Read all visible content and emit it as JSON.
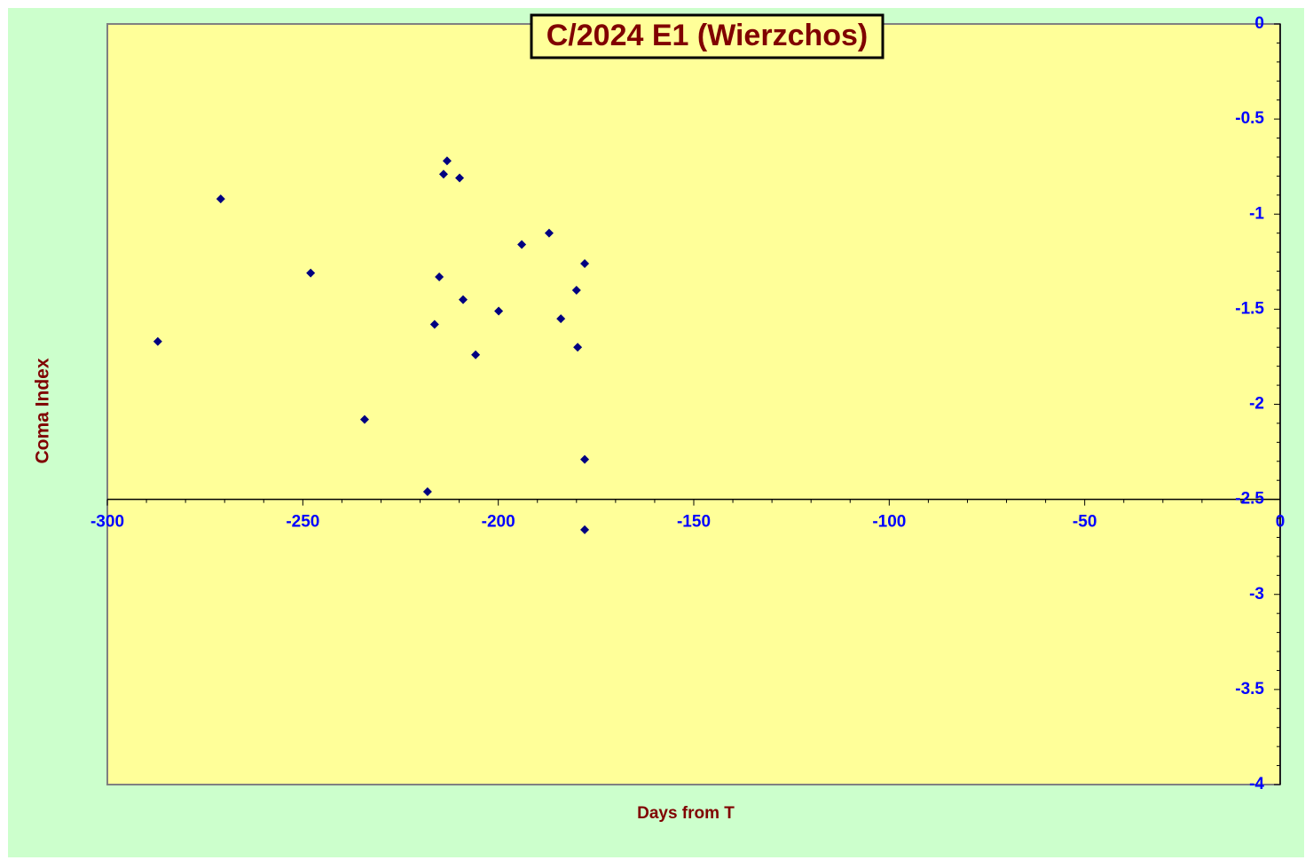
{
  "chart_data": {
    "type": "scatter",
    "title": "C/2024 E1 (Wierzchos)",
    "x_label": "Days from T",
    "y_label": "Coma Index",
    "xlim": [
      -300,
      0
    ],
    "xticks": [
      -300,
      -250,
      -200,
      -150,
      -100,
      -50,
      0
    ],
    "ylim": [
      -4,
      0
    ],
    "yticks": [
      0,
      -0.5,
      -1,
      -1.5,
      -2,
      -2.5,
      -3,
      -3.5,
      -4
    ],
    "x_axis_at": -2.5,
    "color": "#000080",
    "x": [
      -287.1,
      -271,
      -248,
      -234.2,
      -218.1,
      -216.3,
      -215.1,
      -214,
      -213.1,
      -209.9,
      -209,
      -205.8,
      -199.9,
      -194,
      -187,
      -184,
      -180,
      -179.7,
      -177.9,
      -177.9,
      -177.9
    ],
    "values": [
      -1.67,
      -0.92,
      -1.31,
      -2.08,
      -2.46,
      -1.58,
      -1.33,
      -0.79,
      -0.72,
      -0.81,
      -1.45,
      -1.74,
      -1.51,
      -1.16,
      -1.1,
      -1.55,
      -1.4,
      -1.7,
      -1.26,
      -2.29,
      -2.66
    ]
  }
}
